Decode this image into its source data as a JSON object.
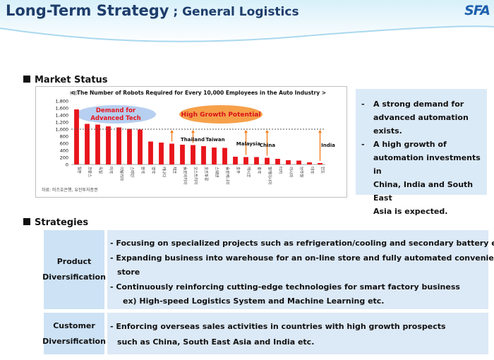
{
  "header": {
    "title_main": "Long-Term Strategy",
    "title_sub": " ; General Logistics",
    "logo": "SFA",
    "accent_color": "#1e3d6b"
  },
  "market_status": {
    "heading": "Market Status",
    "side_notes": [
      "A strong demand for advanced automation exists.",
      "A high growth of automation investments in China, India and South East Asia is expected."
    ],
    "side_note_lines": [
      [
        "A strong demand for",
        "advanced automation",
        "exists."
      ],
      [
        "A high growth of",
        "automation investments in",
        "China, India and South East",
        "Asia is expected."
      ]
    ]
  },
  "chart_data": {
    "type": "bar",
    "title": "< The Number of Robots Required for Every 10,000 Employees in the Auto Industry >",
    "unit_label": "(대)",
    "ylim": [
      0,
      1800
    ],
    "yticks": [
      "1,800",
      "1,600",
      "1,400",
      "1,200",
      "1,000",
      "800",
      "600",
      "400",
      "200",
      "0"
    ],
    "reference_line": 1000,
    "categories": [
      "일본",
      "프랑스",
      "독일",
      "미국",
      "이탈리아",
      "스페인",
      "한국",
      "영국",
      "캐나다",
      "체코",
      "슬로바키아",
      "오스트리아",
      "포르투갈",
      "스웨덴",
      "슬로베니아",
      "호주",
      "멕시코",
      "중국",
      "말레이시아",
      "터키",
      "러시아",
      "브라질",
      "태국",
      "인도"
    ],
    "values": [
      1560,
      1150,
      1130,
      1080,
      1050,
      1010,
      990,
      650,
      620,
      590,
      560,
      550,
      520,
      480,
      470,
      220,
      210,
      210,
      190,
      160,
      120,
      110,
      60,
      40
    ],
    "bar_color": "#e8141b",
    "annotations": [
      {
        "text": "Demand for\nAdvanced Tech",
        "style": "blue-ellipse"
      },
      {
        "text": "High Growth Potential",
        "style": "orange-ellipse"
      },
      {
        "text": "Thailand"
      },
      {
        "text": "Taiwan"
      },
      {
        "text": "Malaysia"
      },
      {
        "text": "China"
      },
      {
        "text": "India"
      }
    ],
    "source": "자료: 미즈호은행, 유진투자증권"
  },
  "strategies": {
    "heading": "Strategies",
    "rows": [
      {
        "label_lines": [
          "Product",
          "Diversification"
        ],
        "items": [
          "- Focusing on specialized projects such as refrigeration/cooling and secondary battery etc.",
          "- Expanding business into warehouse for an on-line store and fully automated convenience",
          "store",
          "- Continuously reinforcing cutting-edge technologies for smart factory business",
          "ex) High-speed Logistics System and Machine Learning etc."
        ]
      },
      {
        "label_lines": [
          "Customer",
          "Diversification"
        ],
        "items": [
          "- Enforcing overseas sales activities in countries with high growth prospects",
          "such as China, South East Asia and India etc."
        ]
      }
    ]
  }
}
